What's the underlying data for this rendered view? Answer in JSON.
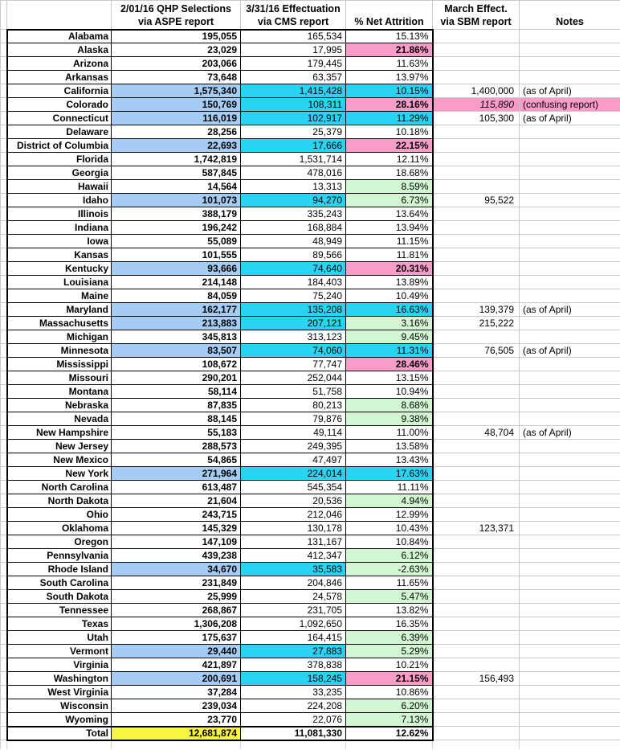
{
  "table_title": "QHP selections vs effectuation attrition by state",
  "header": {
    "state": "",
    "qhp_line1": "2/01/16 QHP Selections",
    "qhp_line2": "via ASPE report",
    "eff_line1": "3/31/16 Effectuation",
    "eff_line2": "via CMS report",
    "attrition": "% Net Attrition",
    "sbm_line1": "March Effect.",
    "sbm_line2": "via SBM report",
    "notes": "Notes"
  },
  "colors": {
    "sbm_selection_blue": "#a5cdf3",
    "sbm_effectuation_cyan": "#2bd3f3",
    "high_attrition_pink": "#f99cc8",
    "low_attrition_green": "#d2f7d2",
    "total_yellow": "#f9f640",
    "grid_black": "#000000",
    "grid_gray": "#c9c9c9"
  },
  "rows": [
    {
      "state": "Alabama",
      "qhp": "195,055",
      "eff": "165,534",
      "attr": "15.13%",
      "sbm": "",
      "note": "",
      "sbm_state": false,
      "attr_bg": "white"
    },
    {
      "state": "Alaska",
      "qhp": "23,029",
      "eff": "17,995",
      "attr": "21.86%",
      "sbm": "",
      "note": "",
      "sbm_state": false,
      "attr_bg": "pink"
    },
    {
      "state": "Arizona",
      "qhp": "203,066",
      "eff": "179,445",
      "attr": "11.63%",
      "sbm": "",
      "note": "",
      "sbm_state": false,
      "attr_bg": "white"
    },
    {
      "state": "Arkansas",
      "qhp": "73,648",
      "eff": "63,357",
      "attr": "13.97%",
      "sbm": "",
      "note": "",
      "sbm_state": false,
      "attr_bg": "white"
    },
    {
      "state": "California",
      "qhp": "1,575,340",
      "eff": "1,415,428",
      "attr": "10.15%",
      "sbm": "1,400,000",
      "note": "(as of April)",
      "sbm_state": true,
      "attr_bg": "cyan"
    },
    {
      "state": "Colorado",
      "qhp": "150,769",
      "eff": "108,311",
      "attr": "28.16%",
      "sbm": "115,890",
      "note": "(confusing report)",
      "sbm_state": true,
      "attr_bg": "pink",
      "sbm_pink": true,
      "sbm_italic": true,
      "note_pink": true
    },
    {
      "state": "Connecticut",
      "qhp": "116,019",
      "eff": "102,917",
      "attr": "11.29%",
      "sbm": "105,300",
      "note": "(as of April)",
      "sbm_state": true,
      "attr_bg": "cyan"
    },
    {
      "state": "Delaware",
      "qhp": "28,256",
      "eff": "25,379",
      "attr": "10.18%",
      "sbm": "",
      "note": "",
      "sbm_state": false,
      "attr_bg": "white"
    },
    {
      "state": "District of Columbia",
      "qhp": "22,693",
      "eff": "17,666",
      "attr": "22.15%",
      "sbm": "",
      "note": "",
      "sbm_state": true,
      "attr_bg": "pink"
    },
    {
      "state": "Florida",
      "qhp": "1,742,819",
      "eff": "1,531,714",
      "attr": "12.11%",
      "sbm": "",
      "note": "",
      "sbm_state": false,
      "attr_bg": "white"
    },
    {
      "state": "Georgia",
      "qhp": "587,845",
      "eff": "478,016",
      "attr": "18.68%",
      "sbm": "",
      "note": "",
      "sbm_state": false,
      "attr_bg": "white"
    },
    {
      "state": "Hawaii",
      "qhp": "14,564",
      "eff": "13,313",
      "attr": "8.59%",
      "sbm": "",
      "note": "",
      "sbm_state": false,
      "attr_bg": "green"
    },
    {
      "state": "Idaho",
      "qhp": "101,073",
      "eff": "94,270",
      "attr": "6.73%",
      "sbm": "95,522",
      "note": "",
      "sbm_state": true,
      "attr_bg": "green"
    },
    {
      "state": "Illinois",
      "qhp": "388,179",
      "eff": "335,243",
      "attr": "13.64%",
      "sbm": "",
      "note": "",
      "sbm_state": false,
      "attr_bg": "white"
    },
    {
      "state": "Indiana",
      "qhp": "196,242",
      "eff": "168,884",
      "attr": "13.94%",
      "sbm": "",
      "note": "",
      "sbm_state": false,
      "attr_bg": "white"
    },
    {
      "state": "Iowa",
      "qhp": "55,089",
      "eff": "48,949",
      "attr": "11.15%",
      "sbm": "",
      "note": "",
      "sbm_state": false,
      "attr_bg": "white"
    },
    {
      "state": "Kansas",
      "qhp": "101,555",
      "eff": "89,566",
      "attr": "11.81%",
      "sbm": "",
      "note": "",
      "sbm_state": false,
      "attr_bg": "white"
    },
    {
      "state": "Kentucky",
      "qhp": "93,666",
      "eff": "74,640",
      "attr": "20.31%",
      "sbm": "",
      "note": "",
      "sbm_state": true,
      "attr_bg": "pink"
    },
    {
      "state": "Louisiana",
      "qhp": "214,148",
      "eff": "184,403",
      "attr": "13.89%",
      "sbm": "",
      "note": "",
      "sbm_state": false,
      "attr_bg": "white"
    },
    {
      "state": "Maine",
      "qhp": "84,059",
      "eff": "75,240",
      "attr": "10.49%",
      "sbm": "",
      "note": "",
      "sbm_state": false,
      "attr_bg": "white"
    },
    {
      "state": "Maryland",
      "qhp": "162,177",
      "eff": "135,208",
      "attr": "16.63%",
      "sbm": "139,379",
      "note": "(as of April)",
      "sbm_state": true,
      "attr_bg": "cyan"
    },
    {
      "state": "Massachusetts",
      "qhp": "213,883",
      "eff": "207,121",
      "attr": "3.16%",
      "sbm": "215,222",
      "note": "",
      "sbm_state": true,
      "attr_bg": "green"
    },
    {
      "state": "Michigan",
      "qhp": "345,813",
      "eff": "313,123",
      "attr": "9.45%",
      "sbm": "",
      "note": "",
      "sbm_state": false,
      "attr_bg": "green"
    },
    {
      "state": "Minnesota",
      "qhp": "83,507",
      "eff": "74,060",
      "attr": "11.31%",
      "sbm": "76,505",
      "note": "(as of April)",
      "sbm_state": true,
      "attr_bg": "cyan"
    },
    {
      "state": "Mississippi",
      "qhp": "108,672",
      "eff": "77,747",
      "attr": "28.46%",
      "sbm": "",
      "note": "",
      "sbm_state": false,
      "attr_bg": "pink"
    },
    {
      "state": "Missouri",
      "qhp": "290,201",
      "eff": "252,044",
      "attr": "13.15%",
      "sbm": "",
      "note": "",
      "sbm_state": false,
      "attr_bg": "white"
    },
    {
      "state": "Montana",
      "qhp": "58,114",
      "eff": "51,758",
      "attr": "10.94%",
      "sbm": "",
      "note": "",
      "sbm_state": false,
      "attr_bg": "white"
    },
    {
      "state": "Nebraska",
      "qhp": "87,835",
      "eff": "80,213",
      "attr": "8.68%",
      "sbm": "",
      "note": "",
      "sbm_state": false,
      "attr_bg": "green"
    },
    {
      "state": "Nevada",
      "qhp": "88,145",
      "eff": "79,876",
      "attr": "9.38%",
      "sbm": "",
      "note": "",
      "sbm_state": false,
      "attr_bg": "green"
    },
    {
      "state": "New Hampshire",
      "qhp": "55,183",
      "eff": "49,114",
      "attr": "11.00%",
      "sbm": "48,704",
      "note": "(as of April)",
      "sbm_state": false,
      "attr_bg": "white"
    },
    {
      "state": "New Jersey",
      "qhp": "288,573",
      "eff": "249,395",
      "attr": "13.58%",
      "sbm": "",
      "note": "",
      "sbm_state": false,
      "attr_bg": "white"
    },
    {
      "state": "New Mexico",
      "qhp": "54,865",
      "eff": "47,497",
      "attr": "13.43%",
      "sbm": "",
      "note": "",
      "sbm_state": false,
      "attr_bg": "white"
    },
    {
      "state": "New York",
      "qhp": "271,964",
      "eff": "224,014",
      "attr": "17.63%",
      "sbm": "",
      "note": "",
      "sbm_state": true,
      "attr_bg": "cyan"
    },
    {
      "state": "North Carolina",
      "qhp": "613,487",
      "eff": "545,354",
      "attr": "11.11%",
      "sbm": "",
      "note": "",
      "sbm_state": false,
      "attr_bg": "white"
    },
    {
      "state": "North Dakota",
      "qhp": "21,604",
      "eff": "20,536",
      "attr": "4.94%",
      "sbm": "",
      "note": "",
      "sbm_state": false,
      "attr_bg": "green"
    },
    {
      "state": "Ohio",
      "qhp": "243,715",
      "eff": "212,046",
      "attr": "12.99%",
      "sbm": "",
      "note": "",
      "sbm_state": false,
      "attr_bg": "white"
    },
    {
      "state": "Oklahoma",
      "qhp": "145,329",
      "eff": "130,178",
      "attr": "10.43%",
      "sbm": "123,371",
      "note": "",
      "sbm_state": false,
      "attr_bg": "white"
    },
    {
      "state": "Oregon",
      "qhp": "147,109",
      "eff": "131,167",
      "attr": "10.84%",
      "sbm": "",
      "note": "",
      "sbm_state": false,
      "attr_bg": "white"
    },
    {
      "state": "Pennsylvania",
      "qhp": "439,238",
      "eff": "412,347",
      "attr": "6.12%",
      "sbm": "",
      "note": "",
      "sbm_state": false,
      "attr_bg": "green"
    },
    {
      "state": "Rhode Island",
      "qhp": "34,670",
      "eff": "35,583",
      "attr": "-2.63%",
      "sbm": "",
      "note": "",
      "sbm_state": true,
      "attr_bg": "green"
    },
    {
      "state": "South Carolina",
      "qhp": "231,849",
      "eff": "204,846",
      "attr": "11.65%",
      "sbm": "",
      "note": "",
      "sbm_state": false,
      "attr_bg": "white"
    },
    {
      "state": "South Dakota",
      "qhp": "25,999",
      "eff": "24,578",
      "attr": "5.47%",
      "sbm": "",
      "note": "",
      "sbm_state": false,
      "attr_bg": "green"
    },
    {
      "state": "Tennessee",
      "qhp": "268,867",
      "eff": "231,705",
      "attr": "13.82%",
      "sbm": "",
      "note": "",
      "sbm_state": false,
      "attr_bg": "white"
    },
    {
      "state": "Texas",
      "qhp": "1,306,208",
      "eff": "1,092,650",
      "attr": "16.35%",
      "sbm": "",
      "note": "",
      "sbm_state": false,
      "attr_bg": "white"
    },
    {
      "state": "Utah",
      "qhp": "175,637",
      "eff": "164,415",
      "attr": "6.39%",
      "sbm": "",
      "note": "",
      "sbm_state": false,
      "attr_bg": "green"
    },
    {
      "state": "Vermont",
      "qhp": "29,440",
      "eff": "27,883",
      "attr": "5.29%",
      "sbm": "",
      "note": "",
      "sbm_state": true,
      "attr_bg": "green"
    },
    {
      "state": "Virginia",
      "qhp": "421,897",
      "eff": "378,838",
      "attr": "10.21%",
      "sbm": "",
      "note": "",
      "sbm_state": false,
      "attr_bg": "white"
    },
    {
      "state": "Washington",
      "qhp": "200,691",
      "eff": "158,245",
      "attr": "21.15%",
      "sbm": "156,493",
      "note": "",
      "sbm_state": true,
      "attr_bg": "pink"
    },
    {
      "state": "West Virginia",
      "qhp": "37,284",
      "eff": "33,235",
      "attr": "10.86%",
      "sbm": "",
      "note": "",
      "sbm_state": false,
      "attr_bg": "white"
    },
    {
      "state": "Wisconsin",
      "qhp": "239,034",
      "eff": "224,208",
      "attr": "6.20%",
      "sbm": "",
      "note": "",
      "sbm_state": false,
      "attr_bg": "green"
    },
    {
      "state": "Wyoming",
      "qhp": "23,770",
      "eff": "22,076",
      "attr": "7.13%",
      "sbm": "",
      "note": "",
      "sbm_state": false,
      "attr_bg": "green"
    }
  ],
  "total": {
    "label": "Total",
    "qhp": "12,681,874",
    "eff": "11,081,330",
    "attr": "12.62%",
    "sbm": "",
    "note": ""
  }
}
